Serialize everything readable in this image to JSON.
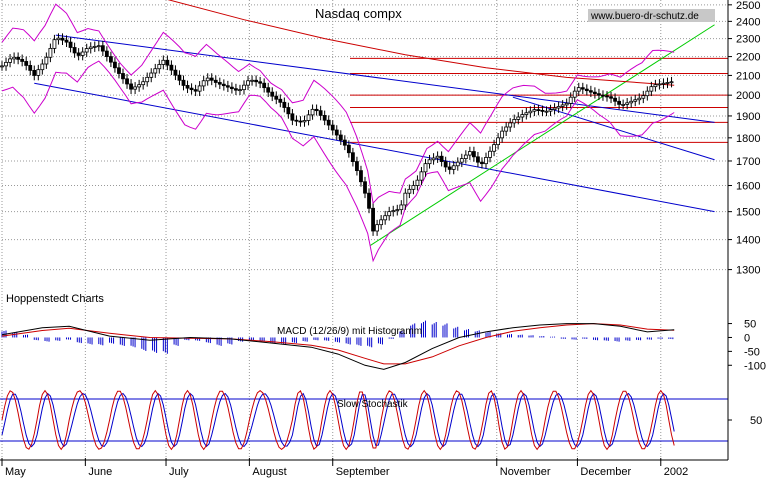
{
  "chart_data": {
    "type": "line",
    "title": "Nasdaq compx",
    "watermark": "www.buero-dr-schutz.de",
    "source_label": "Hoppenstedt Charts",
    "months": [
      {
        "label": "May",
        "day": 0
      },
      {
        "label": "June",
        "day": 31
      },
      {
        "label": "July",
        "day": 61
      },
      {
        "label": "August",
        "day": 92
      },
      {
        "label": "September",
        "day": 123
      },
      {
        "label": "November",
        "day": 184
      },
      {
        "label": "December",
        "day": 214
      },
      {
        "label": "2002",
        "day": 245
      }
    ],
    "price_panel": {
      "y_ticks": [
        1300,
        1400,
        1500,
        1600,
        1700,
        1800,
        1900,
        2000,
        2100,
        2200,
        2300,
        2400,
        2500
      ],
      "ylim": [
        1230,
        2530
      ],
      "horizontal_levels": [
        2190,
        2110,
        2000,
        1940,
        1870,
        1780
      ],
      "downtrend_upper": [
        {
          "day": 20,
          "value": 2320
        },
        {
          "day": 265,
          "value": 1870
        }
      ],
      "downtrend_lower": [
        {
          "day": 12,
          "value": 2060
        },
        {
          "day": 265,
          "value": 1500
        }
      ],
      "channel_parallel": [
        {
          "day": 190,
          "value": 1990
        },
        {
          "day": 265,
          "value": 1705
        }
      ],
      "uptrend_support": [
        {
          "day": 137,
          "value": 1380
        },
        {
          "day": 265,
          "value": 2380
        }
      ],
      "moving_average_200": [
        {
          "day": 60,
          "value": 2540
        },
        {
          "day": 90,
          "value": 2410
        },
        {
          "day": 120,
          "value": 2300
        },
        {
          "day": 150,
          "value": 2210
        },
        {
          "day": 180,
          "value": 2140
        },
        {
          "day": 210,
          "value": 2090
        },
        {
          "day": 240,
          "value": 2060
        },
        {
          "day": 250,
          "value": 2050
        }
      ],
      "close": [
        {
          "day": 0,
          "value": 2150
        },
        {
          "day": 4,
          "value": 2200
        },
        {
          "day": 8,
          "value": 2170
        },
        {
          "day": 12,
          "value": 2100
        },
        {
          "day": 16,
          "value": 2180
        },
        {
          "day": 20,
          "value": 2310
        },
        {
          "day": 24,
          "value": 2280
        },
        {
          "day": 28,
          "value": 2200
        },
        {
          "day": 32,
          "value": 2250
        },
        {
          "day": 36,
          "value": 2260
        },
        {
          "day": 40,
          "value": 2180
        },
        {
          "day": 44,
          "value": 2100
        },
        {
          "day": 48,
          "value": 2030
        },
        {
          "day": 52,
          "value": 2060
        },
        {
          "day": 56,
          "value": 2120
        },
        {
          "day": 60,
          "value": 2180
        },
        {
          "day": 64,
          "value": 2110
        },
        {
          "day": 68,
          "value": 2040
        },
        {
          "day": 72,
          "value": 2020
        },
        {
          "day": 76,
          "value": 2090
        },
        {
          "day": 80,
          "value": 2060
        },
        {
          "day": 84,
          "value": 2040
        },
        {
          "day": 88,
          "value": 2020
        },
        {
          "day": 92,
          "value": 2080
        },
        {
          "day": 96,
          "value": 2060
        },
        {
          "day": 100,
          "value": 2000
        },
        {
          "day": 104,
          "value": 1960
        },
        {
          "day": 108,
          "value": 1880
        },
        {
          "day": 112,
          "value": 1870
        },
        {
          "day": 116,
          "value": 1940
        },
        {
          "day": 120,
          "value": 1880
        },
        {
          "day": 124,
          "value": 1820
        },
        {
          "day": 128,
          "value": 1760
        },
        {
          "day": 132,
          "value": 1660
        },
        {
          "day": 136,
          "value": 1540
        },
        {
          "day": 138,
          "value": 1430
        },
        {
          "day": 140,
          "value": 1460
        },
        {
          "day": 144,
          "value": 1500
        },
        {
          "day": 148,
          "value": 1510
        },
        {
          "day": 150,
          "value": 1570
        },
        {
          "day": 154,
          "value": 1610
        },
        {
          "day": 158,
          "value": 1700
        },
        {
          "day": 162,
          "value": 1720
        },
        {
          "day": 166,
          "value": 1660
        },
        {
          "day": 170,
          "value": 1700
        },
        {
          "day": 174,
          "value": 1740
        },
        {
          "day": 178,
          "value": 1680
        },
        {
          "day": 182,
          "value": 1750
        },
        {
          "day": 186,
          "value": 1830
        },
        {
          "day": 190,
          "value": 1880
        },
        {
          "day": 194,
          "value": 1910
        },
        {
          "day": 198,
          "value": 1930
        },
        {
          "day": 202,
          "value": 1920
        },
        {
          "day": 206,
          "value": 1940
        },
        {
          "day": 210,
          "value": 1960
        },
        {
          "day": 214,
          "value": 2040
        },
        {
          "day": 218,
          "value": 2020
        },
        {
          "day": 222,
          "value": 2000
        },
        {
          "day": 226,
          "value": 1990
        },
        {
          "day": 230,
          "value": 1950
        },
        {
          "day": 234,
          "value": 1970
        },
        {
          "day": 238,
          "value": 1990
        },
        {
          "day": 242,
          "value": 2050
        },
        {
          "day": 246,
          "value": 2060
        },
        {
          "day": 250,
          "value": 2070
        }
      ]
    },
    "macd_panel": {
      "label": "MACD (12/26/9) mit Histogramm",
      "y_ticks": [
        50,
        0,
        -50,
        -100
      ],
      "ylim": [
        -135,
        70
      ],
      "macd": [
        {
          "day": 0,
          "value": 10
        },
        {
          "day": 15,
          "value": 35
        },
        {
          "day": 25,
          "value": 40
        },
        {
          "day": 40,
          "value": 5
        },
        {
          "day": 55,
          "value": -10
        },
        {
          "day": 70,
          "value": 0
        },
        {
          "day": 85,
          "value": -5
        },
        {
          "day": 100,
          "value": -20
        },
        {
          "day": 115,
          "value": -35
        },
        {
          "day": 125,
          "value": -60
        },
        {
          "day": 135,
          "value": -100
        },
        {
          "day": 142,
          "value": -115
        },
        {
          "day": 150,
          "value": -90
        },
        {
          "day": 160,
          "value": -40
        },
        {
          "day": 170,
          "value": 0
        },
        {
          "day": 180,
          "value": 20
        },
        {
          "day": 190,
          "value": 35
        },
        {
          "day": 200,
          "value": 45
        },
        {
          "day": 210,
          "value": 50
        },
        {
          "day": 220,
          "value": 50
        },
        {
          "day": 230,
          "value": 40
        },
        {
          "day": 240,
          "value": 20
        },
        {
          "day": 250,
          "value": 28
        }
      ],
      "signal": [
        {
          "day": 0,
          "value": 5
        },
        {
          "day": 15,
          "value": 25
        },
        {
          "day": 25,
          "value": 33
        },
        {
          "day": 40,
          "value": 15
        },
        {
          "day": 55,
          "value": 0
        },
        {
          "day": 70,
          "value": -3
        },
        {
          "day": 85,
          "value": -5
        },
        {
          "day": 100,
          "value": -15
        },
        {
          "day": 115,
          "value": -28
        },
        {
          "day": 125,
          "value": -45
        },
        {
          "day": 135,
          "value": -75
        },
        {
          "day": 142,
          "value": -95
        },
        {
          "day": 150,
          "value": -95
        },
        {
          "day": 160,
          "value": -70
        },
        {
          "day": 170,
          "value": -30
        },
        {
          "day": 180,
          "value": 0
        },
        {
          "day": 190,
          "value": 22
        },
        {
          "day": 200,
          "value": 35
        },
        {
          "day": 210,
          "value": 45
        },
        {
          "day": 220,
          "value": 50
        },
        {
          "day": 230,
          "value": 45
        },
        {
          "day": 240,
          "value": 30
        },
        {
          "day": 250,
          "value": 26
        }
      ],
      "histogram": [
        {
          "day": 0,
          "value": 25
        },
        {
          "day": 4,
          "value": 20
        },
        {
          "day": 8,
          "value": 10
        },
        {
          "day": 12,
          "value": -10
        },
        {
          "day": 16,
          "value": -15
        },
        {
          "day": 20,
          "value": -12
        },
        {
          "day": 24,
          "value": -8
        },
        {
          "day": 28,
          "value": -20
        },
        {
          "day": 32,
          "value": -25
        },
        {
          "day": 36,
          "value": -28
        },
        {
          "day": 40,
          "value": -22
        },
        {
          "day": 44,
          "value": -30
        },
        {
          "day": 48,
          "value": -35
        },
        {
          "day": 52,
          "value": -48
        },
        {
          "day": 56,
          "value": -55
        },
        {
          "day": 60,
          "value": -58
        },
        {
          "day": 64,
          "value": -30
        },
        {
          "day": 68,
          "value": -10
        },
        {
          "day": 72,
          "value": -12
        },
        {
          "day": 76,
          "value": -20
        },
        {
          "day": 80,
          "value": -30
        },
        {
          "day": 84,
          "value": -25
        },
        {
          "day": 88,
          "value": -15
        },
        {
          "day": 92,
          "value": -10
        },
        {
          "day": 96,
          "value": -15
        },
        {
          "day": 100,
          "value": -22
        },
        {
          "day": 104,
          "value": -25
        },
        {
          "day": 108,
          "value": -20
        },
        {
          "day": 112,
          "value": -15
        },
        {
          "day": 116,
          "value": -10
        },
        {
          "day": 120,
          "value": -12
        },
        {
          "day": 124,
          "value": -18
        },
        {
          "day": 128,
          "value": -25
        },
        {
          "day": 132,
          "value": -30
        },
        {
          "day": 136,
          "value": -35
        },
        {
          "day": 140,
          "value": -25
        },
        {
          "day": 144,
          "value": -5
        },
        {
          "day": 148,
          "value": 25
        },
        {
          "day": 152,
          "value": 50
        },
        {
          "day": 156,
          "value": 60
        },
        {
          "day": 160,
          "value": 55
        },
        {
          "day": 164,
          "value": 50
        },
        {
          "day": 168,
          "value": 38
        },
        {
          "day": 172,
          "value": 30
        },
        {
          "day": 176,
          "value": 25
        },
        {
          "day": 180,
          "value": 20
        },
        {
          "day": 184,
          "value": 15
        },
        {
          "day": 188,
          "value": 12
        },
        {
          "day": 192,
          "value": 10
        },
        {
          "day": 196,
          "value": 8
        },
        {
          "day": 200,
          "value": 5
        },
        {
          "day": 204,
          "value": 3
        },
        {
          "day": 208,
          "value": -5
        },
        {
          "day": 212,
          "value": -8
        },
        {
          "day": 216,
          "value": -5
        },
        {
          "day": 220,
          "value": -10
        },
        {
          "day": 224,
          "value": -12
        },
        {
          "day": 228,
          "value": -15
        },
        {
          "day": 232,
          "value": -12
        },
        {
          "day": 236,
          "value": -10
        },
        {
          "day": 240,
          "value": -8
        },
        {
          "day": 244,
          "value": -5
        },
        {
          "day": 248,
          "value": -6
        }
      ]
    },
    "stochastic_panel": {
      "label": "Slow Stochastik",
      "y_ticks": [
        50
      ],
      "ylim": [
        0,
        100
      ],
      "levels": [
        80,
        20
      ],
      "cycle_days": [
        13,
        12,
        15,
        14,
        12,
        12,
        14,
        16,
        11,
        12,
        10,
        13,
        12,
        13,
        11,
        12,
        14,
        12,
        14,
        12
      ]
    },
    "colors": {
      "price": "#000000",
      "up_candle": "#ffffff",
      "bollinger": "#cc00cc",
      "trendline": "#0000cc",
      "support": "#00cc00",
      "horizontal_level": "#cc0000",
      "ma200": "#cc0000",
      "macd_line": "#000000",
      "signal_line": "#cc0000",
      "histogram": "#0000cc",
      "stoch_k": "#cc0000",
      "stoch_d": "#0000cc"
    }
  }
}
